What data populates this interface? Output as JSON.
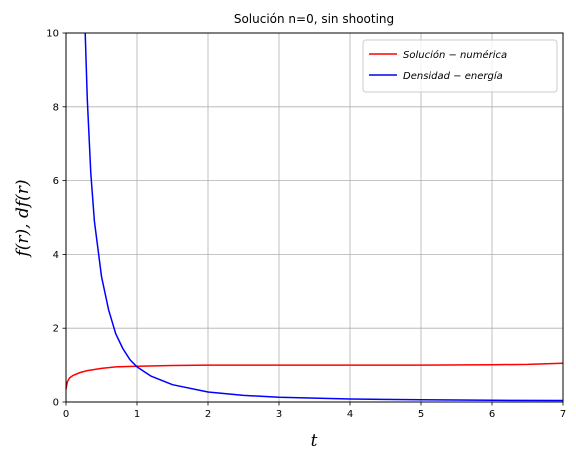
{
  "chart_data": {
    "type": "line",
    "title": "Solución n=0, sin shooting",
    "xlabel": "t",
    "ylabel": "f(r), df(r)",
    "xlim": [
      0,
      7
    ],
    "ylim": [
      0,
      10
    ],
    "x_ticks": [
      "0",
      "1",
      "2",
      "3",
      "4",
      "5",
      "6",
      "7"
    ],
    "y_ticks": [
      "0",
      "2",
      "4",
      "6",
      "8",
      "10"
    ],
    "grid": true,
    "legend_position": "top-right",
    "series": [
      {
        "name": "Solución − numérica",
        "color": "#ff0000",
        "x": [
          0.0,
          0.02,
          0.05,
          0.1,
          0.2,
          0.3,
          0.5,
          0.7,
          1.0,
          1.5,
          2.0,
          3.0,
          4.0,
          5.0,
          6.0,
          6.5,
          7.0
        ],
        "y": [
          0.35,
          0.55,
          0.65,
          0.72,
          0.8,
          0.85,
          0.91,
          0.95,
          0.97,
          0.99,
          1.0,
          1.0,
          1.0,
          1.0,
          1.01,
          1.02,
          1.05
        ]
      },
      {
        "name": "Densidad − energía",
        "color": "#0000ff",
        "x": [
          0.27,
          0.3,
          0.35,
          0.4,
          0.5,
          0.6,
          0.7,
          0.8,
          0.9,
          1.0,
          1.2,
          1.5,
          2.0,
          2.5,
          3.0,
          4.0,
          5.0,
          6.0,
          7.0
        ],
        "y": [
          10.0,
          8.2,
          6.2,
          4.9,
          3.4,
          2.5,
          1.85,
          1.45,
          1.15,
          0.95,
          0.7,
          0.47,
          0.27,
          0.18,
          0.13,
          0.08,
          0.06,
          0.045,
          0.04
        ]
      }
    ]
  }
}
